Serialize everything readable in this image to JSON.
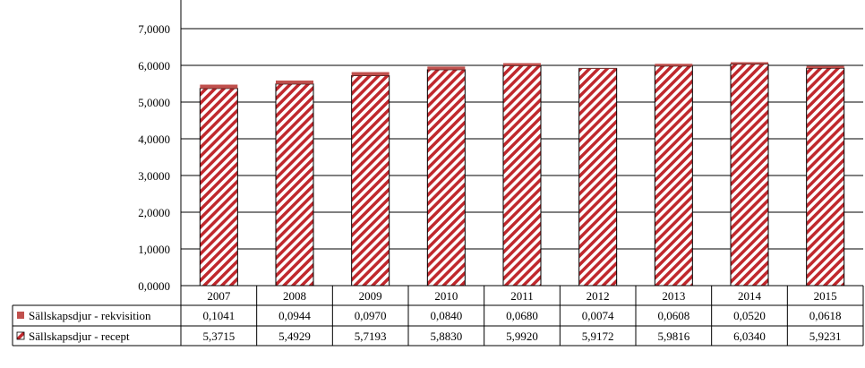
{
  "chart_data": {
    "type": "bar",
    "stacked": true,
    "categories": [
      "2007",
      "2008",
      "2009",
      "2010",
      "2011",
      "2012",
      "2013",
      "2014",
      "2015"
    ],
    "series": [
      {
        "name": "Sällskapsdjur - recept",
        "pattern": "diagonal-stripes",
        "color": "#c0282d",
        "values": [
          5.3715,
          5.4929,
          5.7193,
          5.883,
          5.992,
          5.9172,
          5.9816,
          6.034,
          5.9231
        ],
        "labels": [
          "5,3715",
          "5,4929",
          "5,7193",
          "5,8830",
          "5,9920",
          "5,9172",
          "5,9816",
          "6,0340",
          "5,9231"
        ]
      },
      {
        "name": "Sällskapsdjur - rekvisition",
        "pattern": "solid",
        "color": "#c0504d",
        "values": [
          0.1041,
          0.0944,
          0.097,
          0.084,
          0.068,
          0.0074,
          0.0608,
          0.052,
          0.0618
        ],
        "labels": [
          "0,1041",
          "0,0944",
          "0,0970",
          "0,0840",
          "0,0680",
          "0,0074",
          "0,0608",
          "0,0520",
          "0,0618"
        ]
      }
    ],
    "yticks": [
      "0,0000",
      "1,0000",
      "2,0000",
      "3,0000",
      "4,0000",
      "5,0000",
      "6,0000",
      "7,0000"
    ],
    "ylim": [
      0,
      8
    ],
    "grid": true,
    "legend": "data-table"
  }
}
